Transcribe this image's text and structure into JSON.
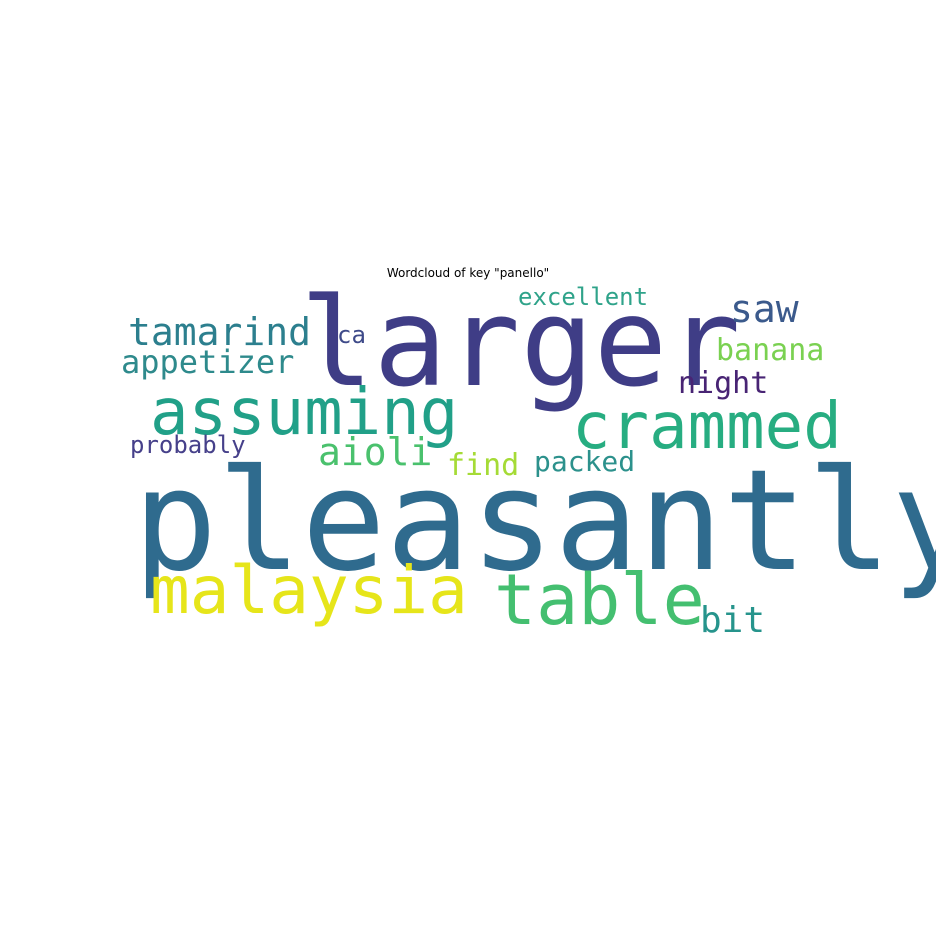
{
  "title": "Wordcloud of key \"panello\"",
  "words": [
    {
      "text": "larger",
      "color": "#3f3d86"
    },
    {
      "text": "pleasantly",
      "color": "#2f6b8e"
    },
    {
      "text": "assuming",
      "color": "#21a088"
    },
    {
      "text": "crammed",
      "color": "#27ad81"
    },
    {
      "text": "malaysia",
      "color": "#e6e51a"
    },
    {
      "text": "table",
      "color": "#44bf70"
    },
    {
      "text": "tamarind",
      "color": "#2c7f8e"
    },
    {
      "text": "appetizer",
      "color": "#2e8a8c"
    },
    {
      "text": "saw",
      "color": "#3b5a8c"
    },
    {
      "text": "banana",
      "color": "#7ad151"
    },
    {
      "text": "night",
      "color": "#482474"
    },
    {
      "text": "excellent",
      "color": "#2fa38a"
    },
    {
      "text": "ca",
      "color": "#3e4a89"
    },
    {
      "text": "aioli",
      "color": "#4ac16d"
    },
    {
      "text": "find",
      "color": "#a5db36"
    },
    {
      "text": "packed",
      "color": "#2c918c"
    },
    {
      "text": "probably",
      "color": "#46408a"
    },
    {
      "text": "bit",
      "color": "#26948c"
    }
  ]
}
